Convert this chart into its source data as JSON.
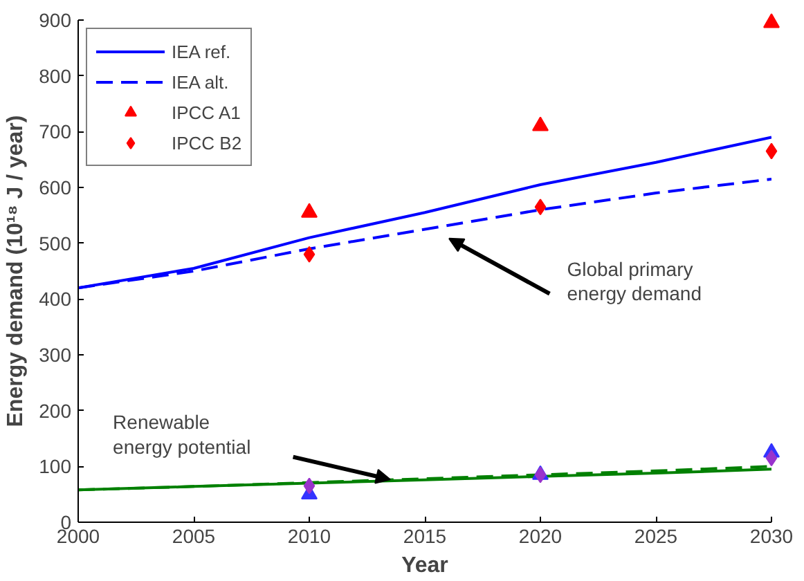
{
  "chart_data": {
    "type": "line",
    "xlabel": "Year",
    "ylabel": "Energy demand (10¹⁸ J / year)",
    "x": [
      2000,
      2005,
      2010,
      2015,
      2020,
      2025,
      2030
    ],
    "xlim": [
      2000,
      2030
    ],
    "xticks": [
      2000,
      2005,
      2010,
      2015,
      2020,
      2025,
      2030
    ],
    "ylim": [
      0,
      900
    ],
    "yticks": [
      0,
      100,
      200,
      300,
      400,
      500,
      600,
      700,
      800,
      900
    ],
    "grid": false,
    "legend": "top left",
    "series": [
      {
        "name": "IEA ref.",
        "color": "#0000ff",
        "line_style": "solid",
        "marker": "none",
        "values": [
          420,
          455,
          510,
          555,
          605,
          645,
          690
        ]
      },
      {
        "name": "IEA alt.",
        "color": "#0000ff",
        "line_style": "dashed",
        "marker": "none",
        "values": [
          420,
          450,
          490,
          525,
          560,
          590,
          615
        ]
      },
      {
        "name": "IPCC A1",
        "type": "scatter",
        "color": "#ff0000",
        "marker": "triangle",
        "x": [
          2010,
          2020,
          2030
        ],
        "values": [
          555,
          710,
          895
        ]
      },
      {
        "name": "IPCC B2",
        "type": "scatter",
        "color": "#ff0000",
        "marker": "diamond",
        "x": [
          2010,
          2020,
          2030
        ],
        "values": [
          480,
          565,
          665
        ]
      },
      {
        "color": "#008000",
        "line_style": "solid",
        "marker": "none",
        "values": [
          58,
          64,
          70,
          76,
          82,
          88,
          95
        ]
      },
      {
        "color": "#008000",
        "line_style": "dashed",
        "marker": "none",
        "values": [
          58,
          64,
          71,
          78,
          85,
          92,
          100
        ]
      },
      {
        "type": "scatter",
        "color": "#3333ff",
        "marker": "triangle",
        "x": [
          2010,
          2020,
          2030
        ],
        "values": [
          50,
          85,
          125
        ]
      },
      {
        "type": "scatter",
        "color": "#9933cc",
        "marker": "diamond",
        "x": [
          2010,
          2020,
          2030
        ],
        "values": [
          65,
          85,
          115
        ]
      }
    ],
    "annotations": [
      "Global primary\nenergy demand",
      "Renewable\nenergy potential"
    ]
  }
}
